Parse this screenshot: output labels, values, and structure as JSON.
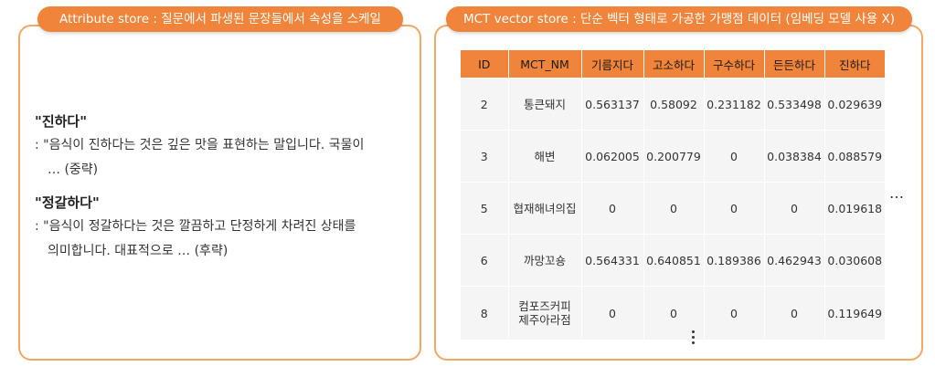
{
  "left": {
    "title": "Attribute store : 질문에서 파생된 문장들에서 속성을 스케일",
    "entries": [
      {
        "term": "\"진하다\"",
        "line1": ": \"음식이 진하다는 것은 깊은 맛을 표현하는 말입니다. 국물이",
        "line2": "… (중략)"
      },
      {
        "term": "\"정갈하다\"",
        "line1": ": \"음식이 정갈하다는 것은 깔끔하고 단정하게 차려진 상태를",
        "line2": "의미합니다. 대표적으로 … (후략)"
      }
    ]
  },
  "right": {
    "title": "MCT vector store : 단순 벡터 형태로 가공한 가맹점 데이터 (임베딩 모델 사용 X)",
    "hcontinuation": "…",
    "table": {
      "headers": [
        "ID",
        "MCT_NM",
        "기름지다",
        "고소하다",
        "구수하다",
        "든든하다",
        "진하다"
      ],
      "rows": [
        [
          "2",
          "통큰돼지",
          "0.563137",
          "0.58092",
          "0.231182",
          "0.533498",
          "0.029639"
        ],
        [
          "3",
          "해변",
          "0.062005",
          "0.200779",
          "0",
          "0.038384",
          "0.088579"
        ],
        [
          "5",
          "협재해녀의집",
          "0",
          "0",
          "0",
          "0",
          "0.019618"
        ],
        [
          "6",
          "까망꼬숑",
          "0.564331",
          "0.640851",
          "0.189386",
          "0.462943",
          "0.030608"
        ],
        [
          "8",
          "컴포즈커피\n제주아라점",
          "0",
          "0",
          "0",
          "0",
          "0.119649"
        ]
      ]
    }
  },
  "colors": {
    "accent": "#f0843a",
    "border": "#f2a765",
    "cell_bg": "#f5f5f5"
  }
}
